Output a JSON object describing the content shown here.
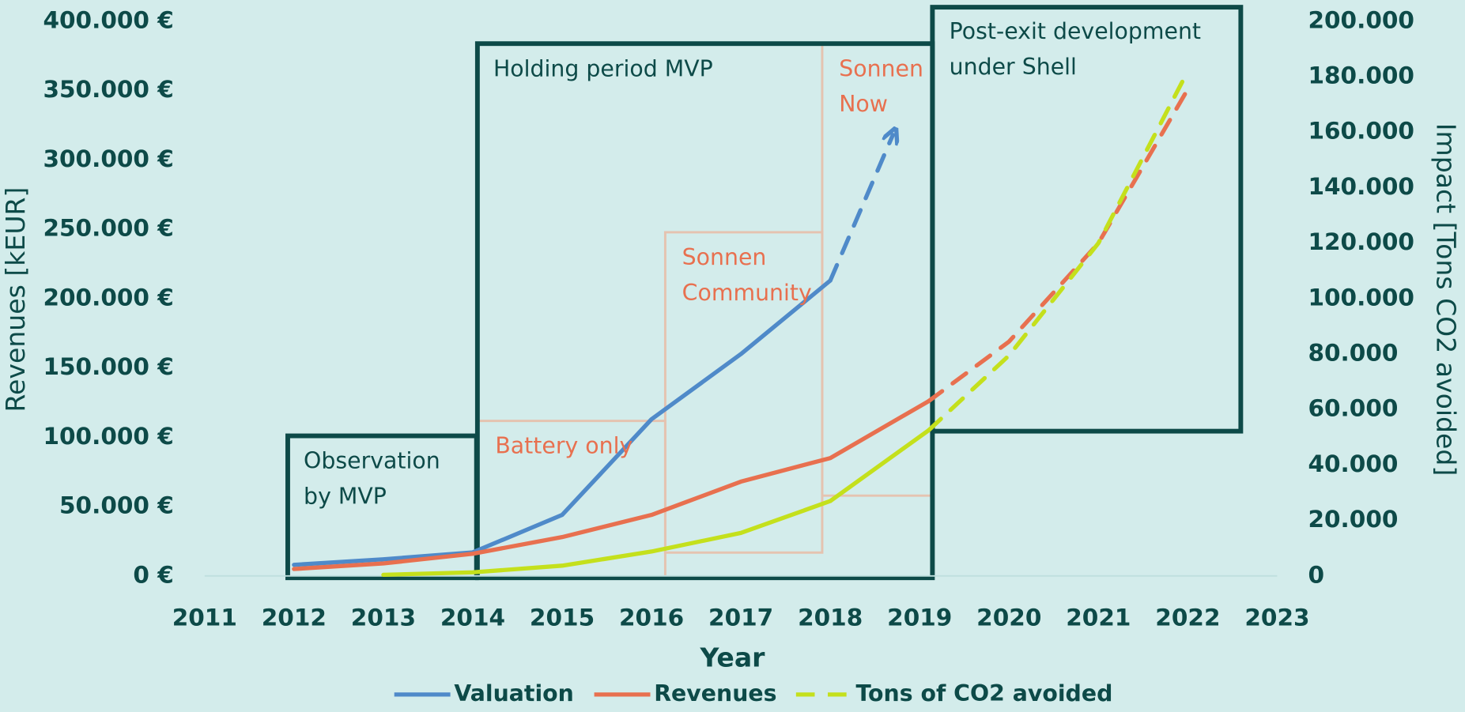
{
  "chart_data": {
    "type": "line",
    "x_label": "Year",
    "y_label": "Revenues [kEUR]",
    "y2_label": "Impact [Tons CO2 avoided]",
    "xlim": [
      2011,
      2023
    ],
    "xticks": [
      2011,
      2012,
      2013,
      2014,
      2015,
      2016,
      2017,
      2018,
      2019,
      2020,
      2021,
      2022,
      2023
    ],
    "ylim": [
      0,
      400000
    ],
    "yticks": [
      {
        "value": 0,
        "label": "0 €"
      },
      {
        "value": 50000,
        "label": "50.000 €"
      },
      {
        "value": 100000,
        "label": "100.000 €"
      },
      {
        "value": 150000,
        "label": "150.000 €"
      },
      {
        "value": 200000,
        "label": "200.000 €"
      },
      {
        "value": 250000,
        "label": "250.000 €"
      },
      {
        "value": 300000,
        "label": "300.000 €"
      },
      {
        "value": 350000,
        "label": "350.000 €"
      },
      {
        "value": 400000,
        "label": "400.000 €"
      }
    ],
    "y2lim": [
      0,
      200000
    ],
    "y2ticks": [
      0,
      {
        "value": 20000,
        "label": "20.000"
      },
      {
        "value": 40000,
        "label": "40.000"
      },
      {
        "value": 60000,
        "label": "60.000"
      },
      {
        "value": 80000,
        "label": "80.000"
      },
      {
        "value": 100000,
        "label": "100.000"
      },
      {
        "value": 120000,
        "label": "120.000"
      },
      {
        "value": 140000,
        "label": "140.000"
      },
      {
        "value": 160000,
        "label": "160.000"
      },
      {
        "value": 180000,
        "label": "180.000"
      },
      {
        "value": 200000,
        "label": "200.000"
      }
    ],
    "legend": "bottom",
    "series": [
      {
        "name": "Valuation",
        "color": "#4f8ac9",
        "axis": "y",
        "projected_from": 6,
        "arrow": true,
        "legend_style": "solid",
        "x": [
          2012,
          2013,
          2014,
          2015,
          2016,
          2017,
          2018,
          2018.7
        ],
        "values": [
          8000,
          12000,
          17000,
          44000,
          113000,
          160000,
          213000,
          318000
        ]
      },
      {
        "name": "Revenues",
        "color": "#e8704f",
        "axis": "y",
        "projected_from": 7,
        "legend_style": "solid",
        "x": [
          2012,
          2013,
          2014,
          2015,
          2016,
          2017,
          2018,
          2019.1,
          2020,
          2021,
          2022
        ],
        "values": [
          5000,
          9000,
          16000,
          28000,
          44000,
          68000,
          85000,
          126000,
          169000,
          240000,
          351000
        ]
      },
      {
        "name": "Tons of CO2 avoided",
        "color": "#c4e01c",
        "axis": "y2",
        "projected_from": 6,
        "legend_style": "dashed",
        "x": [
          2013,
          2014,
          2015,
          2016,
          2017,
          2018,
          2019.1,
          2020,
          2021,
          2022
        ],
        "values": [
          400,
          1300,
          3700,
          8800,
          15500,
          27000,
          52500,
          79500,
          120000,
          182000
        ]
      }
    ],
    "annotations": [
      {
        "lines": [
          "Observation",
          "by MVP"
        ],
        "style": "dark"
      },
      {
        "lines": [
          "Holding period MVP"
        ],
        "style": "dark"
      },
      {
        "lines": [
          "Post-exit development",
          "under Shell"
        ],
        "style": "dark"
      },
      {
        "lines": [
          "Battery only"
        ],
        "style": "orange"
      },
      {
        "lines": [
          "Sonnen",
          "Community"
        ],
        "style": "orange"
      },
      {
        "lines": [
          "Sonnen",
          "Now"
        ],
        "style": "orange"
      }
    ]
  }
}
